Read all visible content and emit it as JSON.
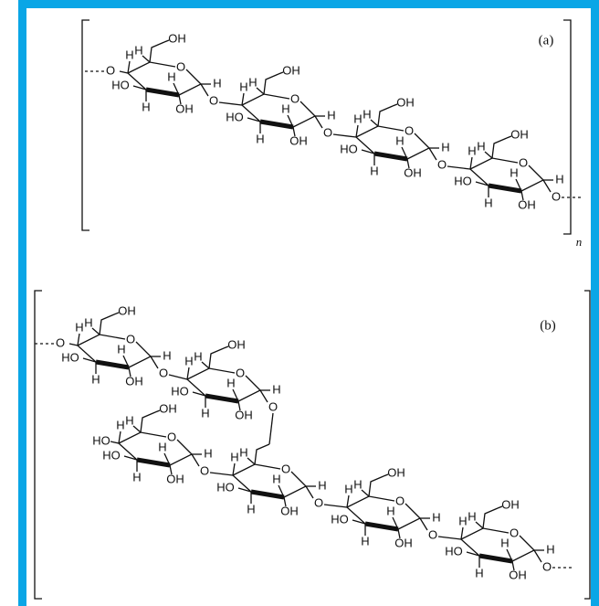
{
  "panels": [
    {
      "label": "(a)",
      "repeat": "n",
      "rings": [
        {
          "c4_sub": "O",
          "c4_h": "H",
          "c5_h": "H",
          "c6_oh": "OH",
          "ring_o": "O",
          "c3_ho": "HO",
          "c3_h": "H",
          "c2_h": "H",
          "c2_oh": "OH",
          "c1_h": "H",
          "c1_o": "O"
        },
        {
          "c4_h": "H",
          "c5_h": "H",
          "c6_oh": "OH",
          "ring_o": "O",
          "c3_ho": "HO",
          "c3_h": "H",
          "c2_h": "H",
          "c2_oh": "OH",
          "c1_h": "H",
          "c1_o": "O"
        },
        {
          "c4_h": "H",
          "c5_h": "H",
          "c6_oh": "OH",
          "ring_o": "O",
          "c3_ho": "HO",
          "c3_h": "H",
          "c2_h": "H",
          "c2_oh": "OH",
          "c1_h": "H",
          "c1_o": "O"
        },
        {
          "c4_h": "H",
          "c5_h": "H",
          "c6_oh": "OH",
          "ring_o": "O",
          "c3_ho": "HO",
          "c3_h": "H",
          "c2_h": "H",
          "c2_oh": "OH",
          "c1_h": "H",
          "c1_o": "O"
        }
      ]
    },
    {
      "label": "(b)",
      "rings": [
        {
          "c4_sub": "O",
          "c4_h": "H",
          "c5_h": "H",
          "c6_oh": "OH",
          "ring_o": "O",
          "c3_ho": "HO",
          "c3_h": "H",
          "c2_h": "H",
          "c2_oh": "OH",
          "c1_h": "H",
          "c1_o": "O"
        },
        {
          "c4_h": "H",
          "c5_h": "H",
          "c6_oh": "OH",
          "ring_o": "O",
          "c3_ho": "HO",
          "c3_h": "H",
          "c2_h": "H",
          "c2_oh": "OH",
          "c1_h": "H",
          "c1_o": "O"
        },
        {
          "c4_sub": "HO",
          "c4_h": "H",
          "c5_h": "H",
          "c6_oh": "OH",
          "ring_o": "O",
          "c3_ho": "HO",
          "c3_h": "H",
          "c2_h": "H",
          "c2_oh": "OH",
          "c1_h": "H",
          "c1_o": "O"
        },
        {
          "c4_h": "H",
          "c5_h": "H",
          "ring_o": "O",
          "c3_ho": "HO",
          "c3_h": "H",
          "c2_h": "H",
          "c2_oh": "OH",
          "c1_h": "H",
          "c1_o": "O"
        },
        {
          "c4_h": "H",
          "c5_h": "H",
          "c6_oh": "OH",
          "ring_o": "O",
          "c3_ho": "HO",
          "c3_h": "H",
          "c2_h": "H",
          "c2_oh": "OH",
          "c1_h": "H",
          "c1_o": "O"
        },
        {
          "c4_h": "H",
          "c5_h": "H",
          "c6_oh": "OH",
          "ring_o": "O",
          "c3_ho": "HO",
          "c3_h": "H",
          "c2_h": "H",
          "c2_oh": "OH",
          "c1_h": "H",
          "c1_o": "O"
        }
      ]
    }
  ]
}
